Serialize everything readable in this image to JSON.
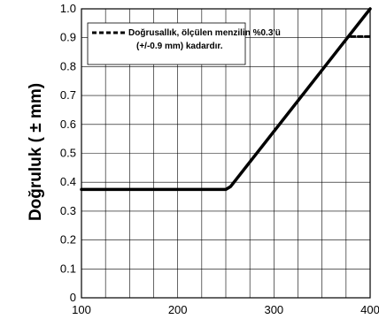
{
  "chart_data": {
    "type": "line",
    "title": "",
    "xlabel": "",
    "ylabel": "Doğruluk ( ± mm)",
    "xlim": [
      100,
      400
    ],
    "ylim": [
      0,
      1.0
    ],
    "x_ticks": [
      "100",
      "200",
      "300",
      "400"
    ],
    "y_ticks": [
      "0",
      "0.1",
      "0.2",
      "0.3",
      "0.4",
      "0.5",
      "0.6",
      "0.7",
      "0.8",
      "0.9",
      "1.0"
    ],
    "grid": true,
    "legend_position": "top-left",
    "series": [
      {
        "name": "",
        "style": "solid",
        "color": "#000000",
        "points": [
          [
            100,
            0.375
          ],
          [
            250,
            0.375
          ],
          [
            255,
            0.385
          ],
          [
            400,
            1.0
          ]
        ]
      },
      {
        "name": "Doğrusallık, ölçülen menzilin %0.3'ü (+/-0.9 mm) kadardır.",
        "style": "dashed",
        "color": "#000000",
        "points": [
          [
            380,
            0.905
          ],
          [
            400,
            0.905
          ]
        ]
      }
    ],
    "legend_lines": [
      "Doğrusallık, ölçülen menzilin %0.3'ü",
      "(+/-0.9 mm) kadardır."
    ]
  }
}
